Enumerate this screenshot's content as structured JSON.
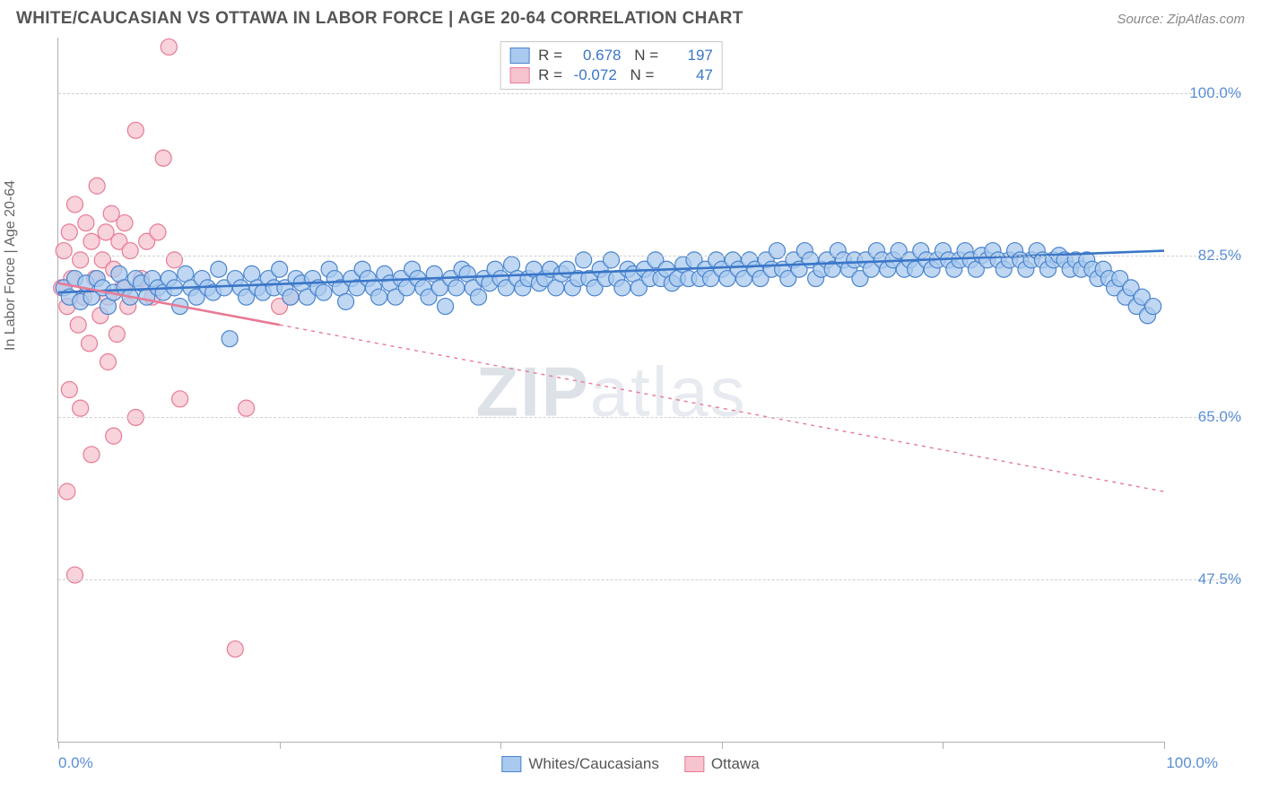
{
  "header": {
    "title": "WHITE/CAUCASIAN VS OTTAWA IN LABOR FORCE | AGE 20-64 CORRELATION CHART",
    "source": "Source: ZipAtlas.com"
  },
  "chart": {
    "type": "scatter",
    "ylabel": "In Labor Force | Age 20-64",
    "watermark": "ZIPatlas",
    "xlim": [
      0,
      100
    ],
    "ylim": [
      30,
      106
    ],
    "x_ticks": [
      0,
      20,
      40,
      60,
      80,
      100
    ],
    "x_tick_labels": {
      "first": "0.0%",
      "last": "100.0%"
    },
    "y_gridlines": [
      47.5,
      65.0,
      82.5,
      100.0
    ],
    "y_tick_labels": [
      "47.5%",
      "65.0%",
      "82.5%",
      "100.0%"
    ],
    "background_color": "#ffffff",
    "grid_color": "#d0d0d0",
    "axis_color": "#b0b0b0",
    "tick_label_color": "#5b8fd6",
    "marker_radius": 9,
    "marker_stroke_width": 1.2,
    "trend_line_width": 2.6,
    "trend_dash_pattern": "4,5",
    "series": [
      {
        "name": "Whites/Caucasians",
        "fill_color": "#a9c9ee",
        "stroke_color": "#4a84cf",
        "line_color": "#3a76c8",
        "R": "0.678",
        "N": "197",
        "trend": {
          "x1": 0,
          "y1": 78.5,
          "x2": 100,
          "y2": 83.0,
          "solid_until_x": 100
        },
        "points": [
          [
            0.5,
            79
          ],
          [
            1,
            78
          ],
          [
            1.5,
            80
          ],
          [
            2,
            77.5
          ],
          [
            2.5,
            79.5
          ],
          [
            3,
            78
          ],
          [
            3.5,
            80
          ],
          [
            4,
            79
          ],
          [
            4.5,
            77
          ],
          [
            5,
            78.5
          ],
          [
            5.5,
            80.5
          ],
          [
            6,
            79
          ],
          [
            6.5,
            78
          ],
          [
            7,
            80
          ],
          [
            7.5,
            79.5
          ],
          [
            8,
            78
          ],
          [
            8.5,
            80
          ],
          [
            9,
            79
          ],
          [
            9.5,
            78.5
          ],
          [
            10,
            80
          ],
          [
            10.5,
            79
          ],
          [
            11,
            77
          ],
          [
            11.5,
            80.5
          ],
          [
            12,
            79
          ],
          [
            12.5,
            78
          ],
          [
            13,
            80
          ],
          [
            13.5,
            79
          ],
          [
            14,
            78.5
          ],
          [
            14.5,
            81
          ],
          [
            15,
            79
          ],
          [
            15.5,
            73.5
          ],
          [
            16,
            80
          ],
          [
            16.5,
            79
          ],
          [
            17,
            78
          ],
          [
            17.5,
            80.5
          ],
          [
            18,
            79
          ],
          [
            18.5,
            78.5
          ],
          [
            19,
            80
          ],
          [
            19.5,
            79
          ],
          [
            20,
            81
          ],
          [
            20.5,
            79
          ],
          [
            21,
            78
          ],
          [
            21.5,
            80
          ],
          [
            22,
            79.5
          ],
          [
            22.5,
            78
          ],
          [
            23,
            80
          ],
          [
            23.5,
            79
          ],
          [
            24,
            78.5
          ],
          [
            24.5,
            81
          ],
          [
            25,
            80
          ],
          [
            25.5,
            79
          ],
          [
            26,
            77.5
          ],
          [
            26.5,
            80
          ],
          [
            27,
            79
          ],
          [
            27.5,
            81
          ],
          [
            28,
            80
          ],
          [
            28.5,
            79
          ],
          [
            29,
            78
          ],
          [
            29.5,
            80.5
          ],
          [
            30,
            79.5
          ],
          [
            30.5,
            78
          ],
          [
            31,
            80
          ],
          [
            31.5,
            79
          ],
          [
            32,
            81
          ],
          [
            32.5,
            80
          ],
          [
            33,
            79
          ],
          [
            33.5,
            78
          ],
          [
            34,
            80.5
          ],
          [
            34.5,
            79
          ],
          [
            35,
            77
          ],
          [
            35.5,
            80
          ],
          [
            36,
            79
          ],
          [
            36.5,
            81
          ],
          [
            37,
            80.5
          ],
          [
            37.5,
            79
          ],
          [
            38,
            78
          ],
          [
            38.5,
            80
          ],
          [
            39,
            79.5
          ],
          [
            39.5,
            81
          ],
          [
            40,
            80
          ],
          [
            40.5,
            79
          ],
          [
            41,
            81.5
          ],
          [
            41.5,
            80
          ],
          [
            42,
            79
          ],
          [
            42.5,
            80
          ],
          [
            43,
            81
          ],
          [
            43.5,
            79.5
          ],
          [
            44,
            80
          ],
          [
            44.5,
            81
          ],
          [
            45,
            79
          ],
          [
            45.5,
            80.5
          ],
          [
            46,
            81
          ],
          [
            46.5,
            79
          ],
          [
            47,
            80
          ],
          [
            47.5,
            82
          ],
          [
            48,
            80
          ],
          [
            48.5,
            79
          ],
          [
            49,
            81
          ],
          [
            49.5,
            80
          ],
          [
            50,
            82
          ],
          [
            50.5,
            80
          ],
          [
            51,
            79
          ],
          [
            51.5,
            81
          ],
          [
            52,
            80.5
          ],
          [
            52.5,
            79
          ],
          [
            53,
            81
          ],
          [
            53.5,
            80
          ],
          [
            54,
            82
          ],
          [
            54.5,
            80
          ],
          [
            55,
            81
          ],
          [
            55.5,
            79.5
          ],
          [
            56,
            80
          ],
          [
            56.5,
            81.5
          ],
          [
            57,
            80
          ],
          [
            57.5,
            82
          ],
          [
            58,
            80
          ],
          [
            58.5,
            81
          ],
          [
            59,
            80
          ],
          [
            59.5,
            82
          ],
          [
            60,
            81
          ],
          [
            60.5,
            80
          ],
          [
            61,
            82
          ],
          [
            61.5,
            81
          ],
          [
            62,
            80
          ],
          [
            62.5,
            82
          ],
          [
            63,
            81
          ],
          [
            63.5,
            80
          ],
          [
            64,
            82
          ],
          [
            64.5,
            81
          ],
          [
            65,
            83
          ],
          [
            65.5,
            81
          ],
          [
            66,
            80
          ],
          [
            66.5,
            82
          ],
          [
            67,
            81
          ],
          [
            67.5,
            83
          ],
          [
            68,
            82
          ],
          [
            68.5,
            80
          ],
          [
            69,
            81
          ],
          [
            69.5,
            82
          ],
          [
            70,
            81
          ],
          [
            70.5,
            83
          ],
          [
            71,
            82
          ],
          [
            71.5,
            81
          ],
          [
            72,
            82
          ],
          [
            72.5,
            80
          ],
          [
            73,
            82
          ],
          [
            73.5,
            81
          ],
          [
            74,
            83
          ],
          [
            74.5,
            82
          ],
          [
            75,
            81
          ],
          [
            75.5,
            82
          ],
          [
            76,
            83
          ],
          [
            76.5,
            81
          ],
          [
            77,
            82
          ],
          [
            77.5,
            81
          ],
          [
            78,
            83
          ],
          [
            78.5,
            82
          ],
          [
            79,
            81
          ],
          [
            79.5,
            82
          ],
          [
            80,
            83
          ],
          [
            80.5,
            82
          ],
          [
            81,
            81
          ],
          [
            81.5,
            82
          ],
          [
            82,
            83
          ],
          [
            82.5,
            82
          ],
          [
            83,
            81
          ],
          [
            83.5,
            82.5
          ],
          [
            84,
            82
          ],
          [
            84.5,
            83
          ],
          [
            85,
            82
          ],
          [
            85.5,
            81
          ],
          [
            86,
            82
          ],
          [
            86.5,
            83
          ],
          [
            87,
            82
          ],
          [
            87.5,
            81
          ],
          [
            88,
            82
          ],
          [
            88.5,
            83
          ],
          [
            89,
            82
          ],
          [
            89.5,
            81
          ],
          [
            90,
            82
          ],
          [
            90.5,
            82.5
          ],
          [
            91,
            82
          ],
          [
            91.5,
            81
          ],
          [
            92,
            82
          ],
          [
            92.5,
            81
          ],
          [
            93,
            82
          ],
          [
            93.5,
            81
          ],
          [
            94,
            80
          ],
          [
            94.5,
            81
          ],
          [
            95,
            80
          ],
          [
            95.5,
            79
          ],
          [
            96,
            80
          ],
          [
            96.5,
            78
          ],
          [
            97,
            79
          ],
          [
            97.5,
            77
          ],
          [
            98,
            78
          ],
          [
            98.5,
            76
          ],
          [
            99,
            77
          ]
        ]
      },
      {
        "name": "Ottawa",
        "fill_color": "#f6c4cf",
        "stroke_color": "#e87a94",
        "line_color": "#e87a94",
        "R": "-0.072",
        "N": "47",
        "trend": {
          "x1": 0,
          "y1": 79.5,
          "x2": 100,
          "y2": 57.0,
          "solid_until_x": 20
        },
        "points": [
          [
            0.3,
            79
          ],
          [
            0.5,
            83
          ],
          [
            0.8,
            77
          ],
          [
            1,
            85
          ],
          [
            1.2,
            80
          ],
          [
            1.5,
            88
          ],
          [
            1.8,
            75
          ],
          [
            2,
            82
          ],
          [
            2.3,
            78
          ],
          [
            2.5,
            86
          ],
          [
            2.8,
            73
          ],
          [
            3,
            84
          ],
          [
            3.3,
            80
          ],
          [
            3.5,
            90
          ],
          [
            3.8,
            76
          ],
          [
            4,
            82
          ],
          [
            4.3,
            85
          ],
          [
            4.5,
            78
          ],
          [
            4.8,
            87
          ],
          [
            5,
            81
          ],
          [
            5.3,
            74
          ],
          [
            5.5,
            84
          ],
          [
            5.8,
            79
          ],
          [
            6,
            86
          ],
          [
            6.3,
            77
          ],
          [
            6.5,
            83
          ],
          [
            7,
            96
          ],
          [
            7.5,
            80
          ],
          [
            8,
            84
          ],
          [
            8.5,
            78
          ],
          [
            9,
            85
          ],
          [
            9.5,
            93
          ],
          [
            10,
            105
          ],
          [
            10.5,
            82
          ],
          [
            4.5,
            71
          ],
          [
            5,
            63
          ],
          [
            3,
            61
          ],
          [
            1,
            68
          ],
          [
            2,
            66
          ],
          [
            0.8,
            57
          ],
          [
            1.5,
            48
          ],
          [
            7,
            65
          ],
          [
            11,
            67
          ],
          [
            16,
            40
          ],
          [
            17,
            66
          ],
          [
            20,
            77
          ],
          [
            21,
            78
          ]
        ]
      }
    ],
    "legend_bottom": [
      {
        "label": "Whites/Caucasians",
        "fill": "#a9c9ee",
        "stroke": "#4a84cf"
      },
      {
        "label": "Ottawa",
        "fill": "#f6c4cf",
        "stroke": "#e87a94"
      }
    ]
  }
}
